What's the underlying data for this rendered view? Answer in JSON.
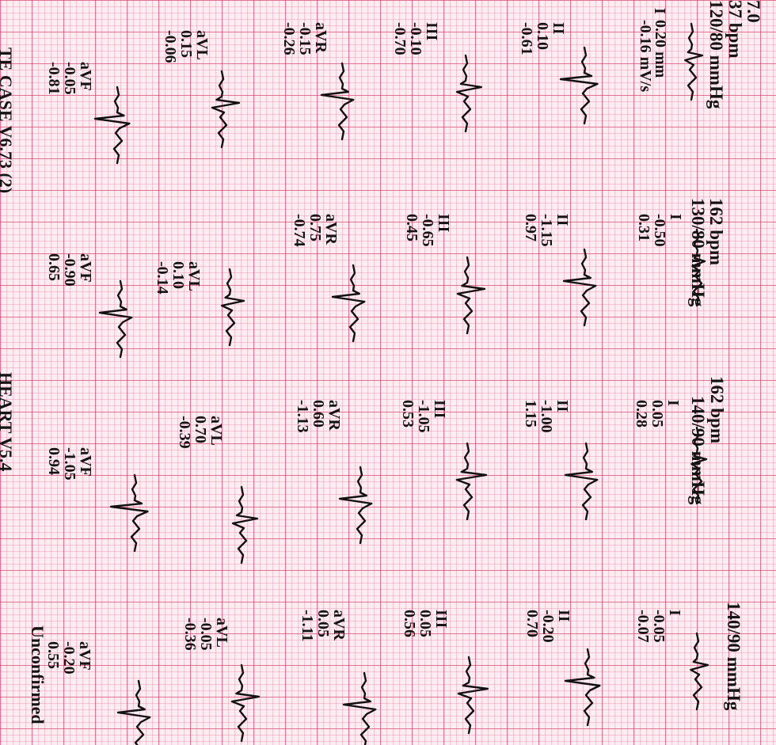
{
  "headers": [
    "7.0",
    "37 bpm",
    "120/80 mmHg",
    "162 bpm",
    "130/80 mmHg",
    "162 bpm",
    "140/90 mmHg",
    "140/90 mmHg"
  ],
  "scale": {
    "amplitude": "0.20 mm",
    "rate": "-0.16 mV/s"
  },
  "panels": [
    {
      "leads": [
        {
          "name": "I",
          "values": []
        },
        {
          "name": "II",
          "values": [
            "0.10",
            "-0.61"
          ]
        },
        {
          "name": "III",
          "values": [
            "-0.10",
            "-0.70"
          ]
        },
        {
          "name": "aVR",
          "values": [
            "-0.15",
            "-0.26"
          ]
        },
        {
          "name": "aVL",
          "values": [
            "0.15",
            "-0.06"
          ]
        },
        {
          "name": "aVF",
          "values": [
            "-0.05",
            "-0.81"
          ]
        }
      ]
    },
    {
      "leads": [
        {
          "name": "I",
          "values": [
            "-0.50",
            "0.31"
          ]
        },
        {
          "name": "II",
          "values": [
            "-1.15",
            "0.97"
          ]
        },
        {
          "name": "III",
          "values": [
            "-0.65",
            "0.45"
          ]
        },
        {
          "name": "aVR",
          "values": [
            "0.75",
            "-0.74"
          ]
        },
        {
          "name": "aVL",
          "values": [
            "0.10",
            "-0.14"
          ]
        },
        {
          "name": "aVF",
          "values": [
            "-0.90",
            "0.65"
          ]
        }
      ]
    },
    {
      "leads": [
        {
          "name": "I",
          "values": [
            "0.05",
            "0.28"
          ]
        },
        {
          "name": "II",
          "values": [
            "-1.00",
            "1.15"
          ]
        },
        {
          "name": "III",
          "values": [
            "-1.05",
            "0.53"
          ]
        },
        {
          "name": "aVR",
          "values": [
            "0.60",
            "-1.13"
          ]
        },
        {
          "name": "aVL",
          "values": [
            "0.70",
            "-0.39"
          ]
        },
        {
          "name": "aVF",
          "values": [
            "-1.05",
            "0.94"
          ]
        }
      ]
    },
    {
      "leads": [
        {
          "name": "I",
          "values": [
            "-0.05",
            "-0.07"
          ]
        },
        {
          "name": "II",
          "values": [
            "-0.20",
            "0.70"
          ]
        },
        {
          "name": "III",
          "values": [
            "0.05",
            "0.56"
          ]
        },
        {
          "name": "aVR",
          "values": [
            "0.05",
            "-1.11"
          ]
        },
        {
          "name": "aVL",
          "values": [
            "-0.05",
            "-0.36"
          ]
        },
        {
          "name": "aVF",
          "values": [
            "-0.20",
            "0.55"
          ]
        }
      ]
    }
  ],
  "footer": {
    "left": "TE CASE V6.73 (2)",
    "middle": "HEART V5.4",
    "right": "Unconfirmed"
  },
  "colors": {
    "paper": "#fbeef2",
    "grid_major": "#d63060",
    "grid_minor": "#e05a82",
    "ink": "#141414"
  }
}
